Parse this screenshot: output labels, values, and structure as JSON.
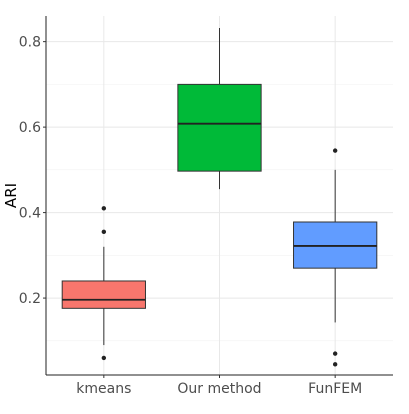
{
  "chart_data": {
    "type": "boxplot",
    "title": "",
    "xlabel": "",
    "ylabel": "ARI",
    "ylim": [
      0.02,
      0.86
    ],
    "y_ticks": [
      {
        "value": 0.2,
        "label": "0.2"
      },
      {
        "value": 0.4,
        "label": "0.4"
      },
      {
        "value": 0.6,
        "label": "0.6"
      },
      {
        "value": 0.8,
        "label": "0.8"
      }
    ],
    "grid": true,
    "legend": "none",
    "categories": [
      "kmeans",
      "Our method",
      "FunFEM"
    ],
    "boxes": [
      {
        "category": "kmeans",
        "color": "#F8766D",
        "whisker_low": 0.09,
        "q1": 0.176,
        "median": 0.196,
        "q3": 0.24,
        "whisker_high": 0.32,
        "outliers": [
          0.06,
          0.355,
          0.41
        ]
      },
      {
        "category": "Our method",
        "color": "#00BA38",
        "whisker_low": 0.455,
        "q1": 0.497,
        "median": 0.608,
        "q3": 0.7,
        "whisker_high": 0.832,
        "outliers": []
      },
      {
        "category": "FunFEM",
        "color": "#619CFF",
        "whisker_low": 0.143,
        "q1": 0.27,
        "median": 0.322,
        "q3": 0.378,
        "whisker_high": 0.5,
        "outliers": [
          0.045,
          0.07,
          0.545
        ]
      }
    ]
  }
}
